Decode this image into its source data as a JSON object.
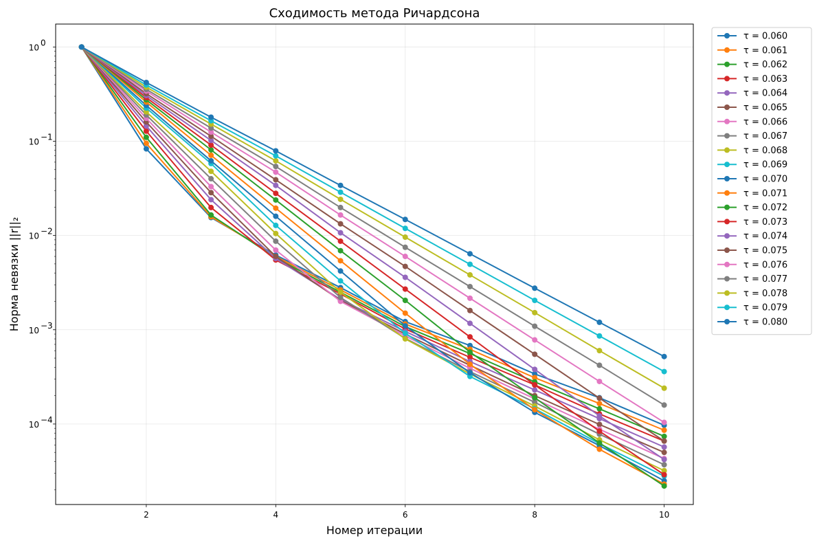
{
  "chart_data": {
    "type": "line",
    "title": "Сходимость метода Ричардсона",
    "xlabel": "Номер итерации",
    "ylabel": "Норма невязки ||r||₂",
    "yscale": "log",
    "xlim": [
      0.6,
      10.45
    ],
    "ylim": [
      1.4e-05,
      1.75
    ],
    "x_ticks": [
      2,
      4,
      6,
      8,
      10
    ],
    "y_ticks": [
      {
        "value": 1,
        "mantissa": "10",
        "exp": "0"
      },
      {
        "value": 0.1,
        "mantissa": "10",
        "exp": "−1"
      },
      {
        "value": 0.01,
        "mantissa": "10",
        "exp": "−2"
      },
      {
        "value": 0.001,
        "mantissa": "10",
        "exp": "−3"
      },
      {
        "value": 0.0001,
        "mantissa": "10",
        "exp": "−4"
      }
    ],
    "grid": true,
    "legend_position": "outside-right",
    "x": [
      1,
      2,
      3,
      4,
      5,
      6,
      7,
      8,
      9,
      10
    ],
    "series": [
      {
        "name": "τ = 0.060",
        "color": "#1f77b4",
        "values": [
          1,
          0.083,
          0.0155,
          0.0062,
          0.0028,
          0.00122,
          0.00068,
          0.00034,
          0.00019,
          9.7e-05
        ]
      },
      {
        "name": "τ = 0.061",
        "color": "#ff7f0e",
        "values": [
          1,
          0.095,
          0.0158,
          0.006,
          0.00265,
          0.00115,
          0.00062,
          0.00031,
          0.000165,
          8.6e-05
        ]
      },
      {
        "name": "τ = 0.062",
        "color": "#2ca02c",
        "values": [
          1,
          0.11,
          0.0165,
          0.0058,
          0.0025,
          0.00108,
          0.00056,
          0.00028,
          0.000145,
          7.4e-05
        ]
      },
      {
        "name": "τ = 0.063",
        "color": "#d62728",
        "values": [
          1,
          0.128,
          0.0198,
          0.0055,
          0.0024,
          0.00102,
          0.00051,
          0.00026,
          0.000128,
          6.6e-05
        ]
      },
      {
        "name": "τ = 0.064",
        "color": "#9467bd",
        "values": [
          1,
          0.145,
          0.024,
          0.0057,
          0.0021,
          0.00096,
          0.00046,
          0.00023,
          0.000114,
          5.7e-05
        ]
      },
      {
        "name": "τ = 0.065",
        "color": "#8c564b",
        "values": [
          1,
          0.16,
          0.0285,
          0.006,
          0.00205,
          0.0009,
          0.00042,
          0.0002,
          9.9e-05,
          5e-05
        ]
      },
      {
        "name": "τ = 0.066",
        "color": "#e377c2",
        "values": [
          1,
          0.175,
          0.033,
          0.007,
          0.002,
          0.00086,
          0.00039,
          0.000185,
          8.8e-05,
          4.3e-05
        ]
      },
      {
        "name": "τ = 0.067",
        "color": "#7f7f7f",
        "values": [
          1,
          0.19,
          0.04,
          0.0087,
          0.0022,
          0.00081,
          0.00036,
          0.00017,
          7.8e-05,
          3.7e-05
        ]
      },
      {
        "name": "τ = 0.068",
        "color": "#bcbd22",
        "values": [
          1,
          0.205,
          0.048,
          0.0105,
          0.0025,
          0.0008,
          0.00034,
          0.000155,
          6.8e-05,
          3.2e-05
        ]
      },
      {
        "name": "τ = 0.069",
        "color": "#17becf",
        "values": [
          1,
          0.225,
          0.058,
          0.0128,
          0.0033,
          0.00092,
          0.00032,
          0.000145,
          6.2e-05,
          2.8e-05
        ]
      },
      {
        "name": "τ = 0.070",
        "color": "#1f77b4",
        "values": [
          1,
          0.24,
          0.062,
          0.016,
          0.0042,
          0.0011,
          0.00035,
          0.000133,
          5.9e-05,
          2.5e-05
        ]
      },
      {
        "name": "τ = 0.071",
        "color": "#ff7f0e",
        "values": [
          1,
          0.26,
          0.071,
          0.0195,
          0.0054,
          0.0015,
          0.00043,
          0.000142,
          5.4e-05,
          2.3e-05
        ]
      },
      {
        "name": "τ = 0.072",
        "color": "#2ca02c",
        "values": [
          1,
          0.275,
          0.081,
          0.0238,
          0.0069,
          0.00205,
          0.00058,
          0.00019,
          6.3e-05,
          2.2e-05
        ]
      },
      {
        "name": "τ = 0.073",
        "color": "#d62728",
        "values": [
          1,
          0.29,
          0.091,
          0.028,
          0.0087,
          0.0027,
          0.00084,
          0.00026,
          8.4e-05,
          2.9e-05
        ]
      },
      {
        "name": "τ = 0.074",
        "color": "#9467bd",
        "values": [
          1,
          0.305,
          0.102,
          0.034,
          0.0107,
          0.0036,
          0.00117,
          0.00038,
          0.000122,
          4.2e-05
        ]
      },
      {
        "name": "τ = 0.075",
        "color": "#8c564b",
        "values": [
          1,
          0.32,
          0.113,
          0.039,
          0.0133,
          0.0047,
          0.0016,
          0.00055,
          0.000188,
          6.6e-05
        ]
      },
      {
        "name": "τ = 0.076",
        "color": "#e377c2",
        "values": [
          1,
          0.34,
          0.125,
          0.047,
          0.0165,
          0.006,
          0.00216,
          0.00078,
          0.000283,
          0.000104
        ]
      },
      {
        "name": "τ = 0.077",
        "color": "#7f7f7f",
        "values": [
          1,
          0.355,
          0.138,
          0.054,
          0.0198,
          0.0075,
          0.00287,
          0.00109,
          0.00042,
          0.000159
        ]
      },
      {
        "name": "τ = 0.078",
        "color": "#bcbd22",
        "values": [
          1,
          0.375,
          0.152,
          0.062,
          0.0242,
          0.0096,
          0.00382,
          0.00152,
          0.0006,
          0.00024
        ]
      },
      {
        "name": "τ = 0.079",
        "color": "#17becf",
        "values": [
          1,
          0.395,
          0.165,
          0.07,
          0.0288,
          0.0119,
          0.00495,
          0.00205,
          0.00086,
          0.00036
        ]
      },
      {
        "name": "τ = 0.080",
        "color": "#1f77b4",
        "values": [
          1,
          0.42,
          0.18,
          0.079,
          0.034,
          0.0148,
          0.0064,
          0.00276,
          0.0012,
          0.00052
        ]
      }
    ]
  }
}
